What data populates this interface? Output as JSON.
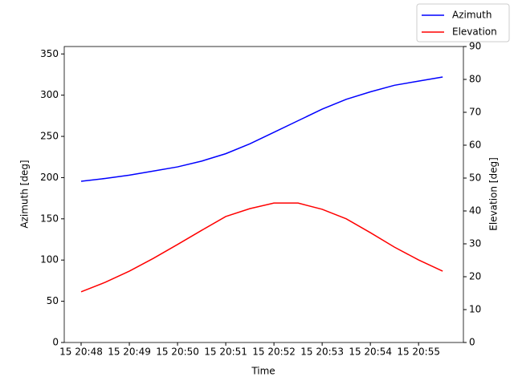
{
  "chart_data": {
    "type": "line",
    "xlabel": "Time",
    "ylabel": "Azimuth [deg]",
    "y2label": "Elevation [deg]",
    "x": [
      48,
      48.5,
      49,
      49.5,
      50,
      50.5,
      51,
      51.5,
      52,
      52.5,
      53,
      53.5,
      54,
      54.5,
      55,
      55.5
    ],
    "xlim": [
      47.65,
      55.93
    ],
    "xticks": [
      {
        "value": 48,
        "label": "15 20:48"
      },
      {
        "value": 49,
        "label": "15 20:49"
      },
      {
        "value": 50,
        "label": "15 20:50"
      },
      {
        "value": 51,
        "label": "15 20:51"
      },
      {
        "value": 52,
        "label": "15 20:52"
      },
      {
        "value": 53,
        "label": "15 20:53"
      },
      {
        "value": 54,
        "label": "15 20:54"
      },
      {
        "value": 55,
        "label": "15 20:55"
      }
    ],
    "ylim": [
      0,
      359
    ],
    "yticks": [
      0,
      50,
      100,
      150,
      200,
      250,
      300,
      350
    ],
    "y2lim": [
      0,
      90
    ],
    "y2ticks": [
      0,
      10,
      20,
      30,
      40,
      50,
      60,
      70,
      80,
      90
    ],
    "legend": "upper right",
    "series": [
      {
        "name": "Azimuth",
        "color": "#0000ff",
        "values": [
          195.5,
          199,
          203,
          208,
          213,
          220,
          229,
          241,
          255,
          269,
          283,
          295,
          304,
          312,
          317,
          322
        ]
      },
      {
        "name": "Elevation",
        "color": "#ff0000",
        "axis": "y2",
        "values": [
          15.4,
          18.3,
          21.7,
          25.6,
          29.8,
          34.1,
          38.3,
          40.7,
          42.4,
          42.4,
          40.5,
          37.6,
          33.4,
          29,
          25.1,
          21.7
        ]
      }
    ]
  }
}
